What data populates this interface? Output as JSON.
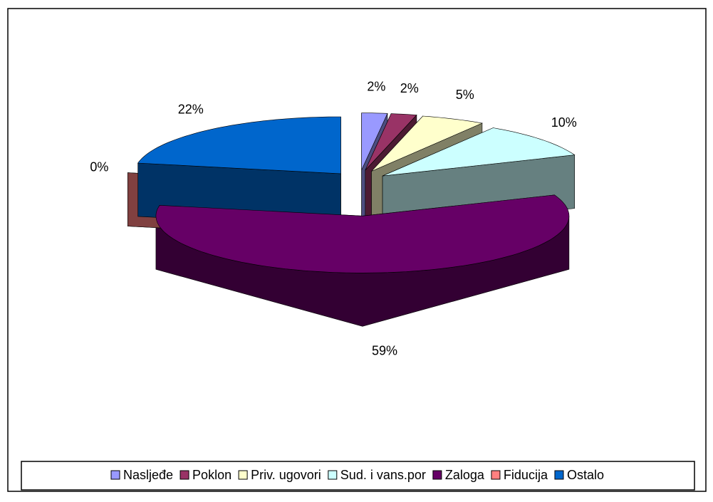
{
  "chart_data": {
    "type": "pie3d",
    "categories": [
      "Nasljeđe",
      "Poklon",
      "Priv. ugovori",
      "Sud. i vans.por",
      "Zaloga",
      "Fiducija",
      "Ostalo"
    ],
    "values": [
      2,
      2,
      5,
      10,
      59,
      0,
      22
    ],
    "value_labels": [
      "2%",
      "2%",
      "5%",
      "10%",
      "59%",
      "0%",
      "22%"
    ],
    "colors": [
      "#9999ff",
      "#993366",
      "#ffffcc",
      "#ccffff",
      "#660066",
      "#ff8080",
      "#0066cc"
    ],
    "legend": "bottom"
  }
}
